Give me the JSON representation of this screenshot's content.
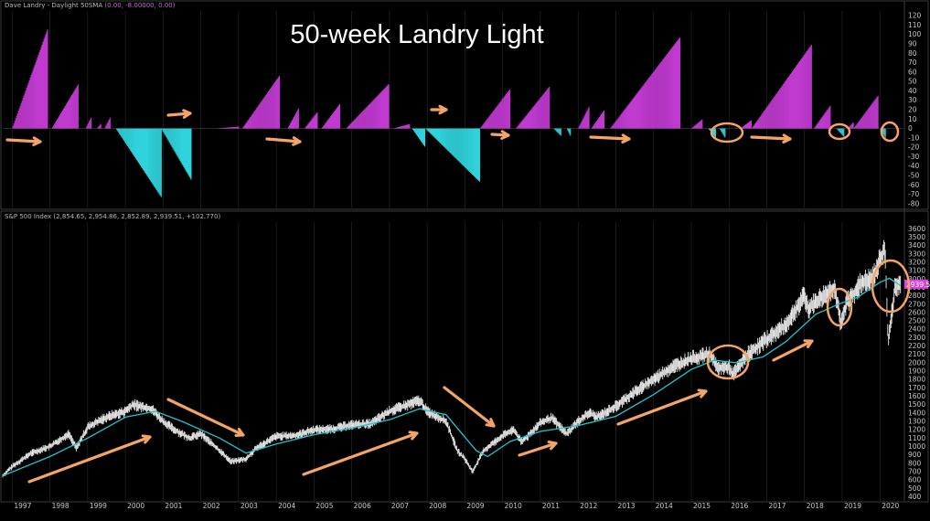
{
  "title": "50-week Landry Light",
  "colors": {
    "background": "#000000",
    "magenta": "#c03ad0",
    "cyan": "#2fd3dc",
    "price": "#e8e8e8",
    "sma": "#22c3cf",
    "annotation": "#f4a566",
    "grid": "#2a2a2a",
    "price_tag": "#e040e0"
  },
  "chart_data": [
    {
      "type": "bar",
      "header": {
        "name": "Dave Landry - Daylight 50SMA",
        "values": "(0.00, -8.00000, 0.00)"
      },
      "y_ticks": [
        120,
        110,
        100,
        90,
        80,
        70,
        60,
        50,
        40,
        30,
        20,
        10,
        0,
        -10,
        -20,
        -30,
        -40,
        -50,
        -60,
        -70,
        -80
      ],
      "ylim": [
        -85,
        125
      ],
      "segments": [
        {
          "start": 1997.0,
          "end": 1997.95,
          "peak": 107,
          "sign": "pos"
        },
        {
          "start": 1998.05,
          "end": 1998.75,
          "peak": 47,
          "sign": "pos"
        },
        {
          "start": 1998.95,
          "end": 1999.1,
          "peak": 12,
          "sign": "pos"
        },
        {
          "start": 1999.25,
          "end": 1999.35,
          "peak": 5,
          "sign": "pos"
        },
        {
          "start": 1999.45,
          "end": 1999.6,
          "peak": 12,
          "sign": "pos"
        },
        {
          "start": 1999.75,
          "end": 2000.95,
          "peak": -73,
          "sign": "neg"
        },
        {
          "start": 2000.95,
          "end": 2001.75,
          "peak": -55,
          "sign": "neg"
        },
        {
          "start": 2002.4,
          "end": 2003.0,
          "peak": 2,
          "sign": "pos"
        },
        {
          "start": 2003.1,
          "end": 2004.1,
          "peak": 57,
          "sign": "pos"
        },
        {
          "start": 2004.3,
          "end": 2004.6,
          "peak": 22,
          "sign": "pos"
        },
        {
          "start": 2004.75,
          "end": 2005.1,
          "peak": 18,
          "sign": "pos"
        },
        {
          "start": 2005.2,
          "end": 2005.7,
          "peak": 27,
          "sign": "pos"
        },
        {
          "start": 2005.85,
          "end": 2007.0,
          "peak": 48,
          "sign": "pos"
        },
        {
          "start": 2007.1,
          "end": 2007.55,
          "peak": 5,
          "sign": "pos"
        },
        {
          "start": 2007.6,
          "end": 2007.95,
          "peak": -20,
          "sign": "neg"
        },
        {
          "start": 2007.95,
          "end": 2009.4,
          "peak": -57,
          "sign": "neg"
        },
        {
          "start": 2009.4,
          "end": 2010.2,
          "peak": 42,
          "sign": "pos"
        },
        {
          "start": 2010.35,
          "end": 2011.25,
          "peak": 45,
          "sign": "pos"
        },
        {
          "start": 2011.35,
          "end": 2011.55,
          "peak": -8,
          "sign": "neg"
        },
        {
          "start": 2011.7,
          "end": 2011.8,
          "peak": -8,
          "sign": "neg"
        },
        {
          "start": 2012.0,
          "end": 2012.3,
          "peak": 24,
          "sign": "pos"
        },
        {
          "start": 2012.35,
          "end": 2012.7,
          "peak": 20,
          "sign": "pos"
        },
        {
          "start": 2012.85,
          "end": 2014.7,
          "peak": 97,
          "sign": "pos"
        },
        {
          "start": 2015.0,
          "end": 2015.3,
          "peak": 10,
          "sign": "pos"
        },
        {
          "start": 2015.45,
          "end": 2015.65,
          "peak": -10,
          "sign": "neg"
        },
        {
          "start": 2015.75,
          "end": 2015.9,
          "peak": -10,
          "sign": "neg"
        },
        {
          "start": 2016.3,
          "end": 2016.6,
          "peak": 9,
          "sign": "pos"
        },
        {
          "start": 2016.6,
          "end": 2018.2,
          "peak": 90,
          "sign": "pos"
        },
        {
          "start": 2018.25,
          "end": 2018.7,
          "peak": 25,
          "sign": "pos"
        },
        {
          "start": 2018.85,
          "end": 2019.05,
          "peak": -9,
          "sign": "neg"
        },
        {
          "start": 2019.15,
          "end": 2019.3,
          "peak": 7,
          "sign": "pos"
        },
        {
          "start": 2019.3,
          "end": 2019.95,
          "peak": 35,
          "sign": "pos"
        },
        {
          "start": 2020.0,
          "end": 2020.15,
          "peak": -10,
          "sign": "neg"
        }
      ]
    },
    {
      "type": "line",
      "header": {
        "name": "S&P 500 Index",
        "values": "(2,854.65, 2,954.86, 2,852.89, 2,939.51, +102.770)"
      },
      "price_tag": "2939.51",
      "y_ticks": [
        3600,
        3500,
        3400,
        3300,
        3200,
        3100,
        3000,
        2900,
        2800,
        2700,
        2600,
        2500,
        2400,
        2300,
        2200,
        2100,
        2000,
        1900,
        1800,
        1700,
        1600,
        1500,
        1400,
        1300,
        1200,
        1100,
        1000,
        900,
        800,
        700,
        600,
        500,
        400
      ],
      "ylim": [
        350,
        3680
      ],
      "x_labels": [
        "1997",
        "1998",
        "1999",
        "2000",
        "2001",
        "2002",
        "2003",
        "2004",
        "2005",
        "2006",
        "2007",
        "2008",
        "2009",
        "2010",
        "2011",
        "2012",
        "2013",
        "2014",
        "2015",
        "2016",
        "2017",
        "2018",
        "2019",
        "2020"
      ],
      "xlim": [
        1996.75,
        2020.6
      ],
      "series": [
        {
          "x": [
            1996.75,
            1997.0,
            1997.5,
            1998.0,
            1998.5,
            1998.7,
            1999.0,
            1999.5,
            2000.0,
            2000.2,
            2000.7,
            2001.0,
            2001.3,
            2001.7,
            2002.0,
            2002.5,
            2002.8,
            2003.2,
            2003.5,
            2004.0,
            2004.5,
            2005.0,
            2005.5,
            2006.0,
            2006.5,
            2007.0,
            2007.5,
            2007.8,
            2008.0,
            2008.5,
            2008.8,
            2009.0,
            2009.2,
            2009.5,
            2010.0,
            2010.3,
            2010.5,
            2011.0,
            2011.3,
            2011.7,
            2012.0,
            2012.3,
            2012.5,
            2013.0,
            2013.5,
            2014.0,
            2014.5,
            2015.0,
            2015.5,
            2015.7,
            2016.0,
            2016.1,
            2016.5,
            2017.0,
            2017.5,
            2018.0,
            2018.1,
            2018.5,
            2018.8,
            2018.97,
            2019.1,
            2019.5,
            2019.8,
            2020.0,
            2020.13,
            2020.22,
            2020.4,
            2020.55
          ],
          "values": [
            650,
            760,
            920,
            1000,
            1150,
            980,
            1230,
            1350,
            1420,
            1500,
            1450,
            1300,
            1200,
            1100,
            1150,
            950,
            820,
            850,
            990,
            1120,
            1130,
            1200,
            1210,
            1260,
            1270,
            1420,
            1500,
            1550,
            1420,
            1300,
            950,
            850,
            700,
            950,
            1130,
            1200,
            1050,
            1280,
            1340,
            1150,
            1300,
            1400,
            1350,
            1480,
            1650,
            1800,
            1950,
            2050,
            2100,
            1930,
            1950,
            1860,
            2100,
            2280,
            2450,
            2800,
            2650,
            2800,
            2900,
            2450,
            2700,
            2950,
            3000,
            3220,
            3380,
            2250,
            2900,
            2940
          ]
        },
        {
          "name": "50-week SMA",
          "x": [
            1996.75,
            1998.0,
            1999.0,
            2000.0,
            2000.8,
            2001.5,
            2002.5,
            2003.2,
            2004.0,
            2005.0,
            2006.0,
            2007.0,
            2007.8,
            2008.5,
            2009.3,
            2009.6,
            2010.2,
            2011.0,
            2012.0,
            2013.0,
            2014.0,
            2015.0,
            2015.6,
            2016.2,
            2016.9,
            2017.5,
            2018.3,
            2018.9,
            2019.4,
            2020.0,
            2020.25,
            2020.55
          ],
          "values": [
            650,
            880,
            1100,
            1350,
            1420,
            1300,
            1100,
            920,
            1030,
            1140,
            1220,
            1320,
            1450,
            1380,
            950,
            880,
            1060,
            1180,
            1250,
            1360,
            1620,
            1920,
            2030,
            2000,
            2070,
            2250,
            2580,
            2700,
            2780,
            2960,
            3010,
            2920
          ]
        }
      ]
    }
  ]
}
